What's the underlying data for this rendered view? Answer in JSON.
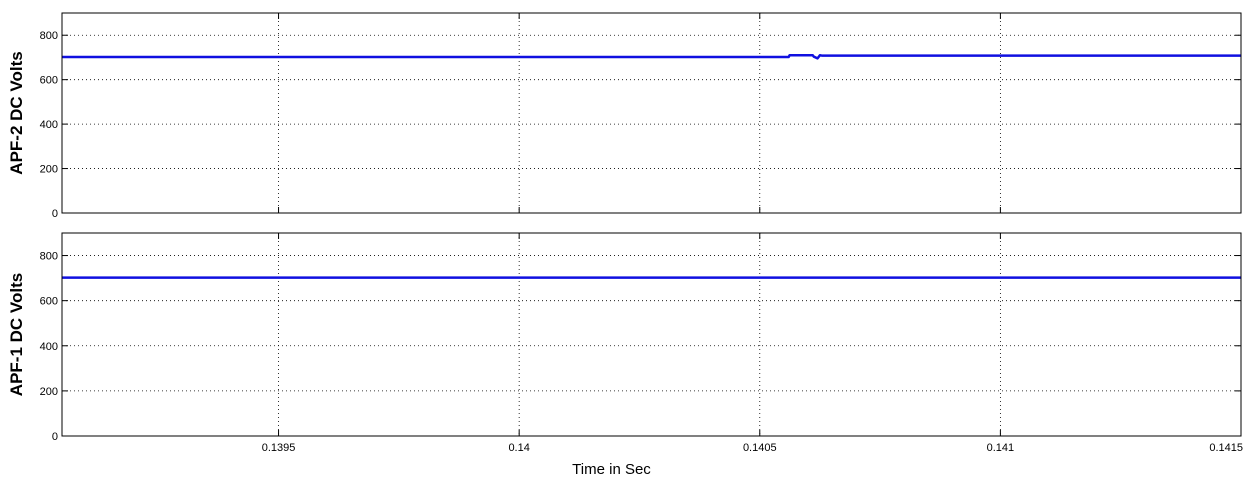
{
  "chart_data": [
    {
      "type": "line",
      "ylabel": "APF-2 DC Volts",
      "xlabel": "",
      "xlim": [
        0.13905,
        0.1415
      ],
      "ylim": [
        0,
        900
      ],
      "yticks": [
        0,
        200,
        400,
        600,
        800
      ],
      "xticks": [
        0.1395,
        0.14,
        0.1405,
        0.141,
        0.1415
      ],
      "xtick_labels": [
        "",
        "",
        "",
        "",
        ""
      ],
      "grid": true,
      "line_color": "#1010e0",
      "series": [
        {
          "x": [
            0.13905,
            0.14056,
            0.140562,
            0.14061,
            0.140612,
            0.14062,
            0.140625,
            0.14063,
            0.1415
          ],
          "y": [
            702,
            702,
            710,
            710,
            704,
            696,
            710,
            708,
            708
          ]
        }
      ]
    },
    {
      "type": "line",
      "ylabel": "APF-1 DC Volts",
      "xlabel": "Time in Sec",
      "xlim": [
        0.13905,
        0.1415
      ],
      "ylim": [
        0,
        900
      ],
      "yticks": [
        0,
        200,
        400,
        600,
        800
      ],
      "xticks": [
        0.1395,
        0.14,
        0.1405,
        0.141,
        0.1415
      ],
      "xtick_labels": [
        "0.1395",
        "0.14",
        "0.1405",
        "0.141",
        "0.1415"
      ],
      "grid": true,
      "line_color": "#1010e0",
      "series": [
        {
          "x": [
            0.13905,
            0.1415
          ],
          "y": [
            702,
            702
          ]
        }
      ]
    }
  ]
}
